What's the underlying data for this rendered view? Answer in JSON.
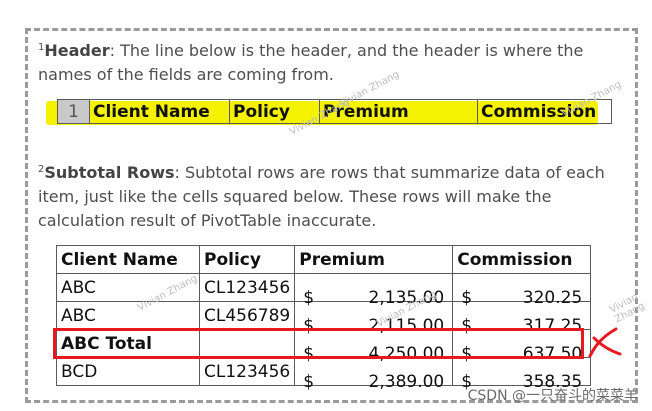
{
  "para1": {
    "sup": "1",
    "bold": "Header",
    "text": ": The line below is the header, and the header is where the names of the fields are coming from."
  },
  "header_row": {
    "row_number": "1",
    "cells": [
      "Client Name",
      "Policy",
      "Premium",
      "Commission"
    ],
    "highlight_color": "#f5f200"
  },
  "para2": {
    "sup": "2",
    "bold": "Subtotal Rows",
    "text": ": Subtotal rows are rows that summarize data of each item, just like the cells squared below. These rows will make the calculation result of PivotTable inaccurate."
  },
  "table": {
    "headers": [
      "Client Name",
      "Policy",
      "Premium",
      "Commission"
    ],
    "rows": [
      {
        "client": "ABC",
        "policy": "CL123456",
        "prem_cur": "$",
        "premium": "2,135.00",
        "comm_cur": "$",
        "commission": "320.25"
      },
      {
        "client": "ABC",
        "policy": "CL456789",
        "prem_cur": "$",
        "premium": "2,115.00",
        "comm_cur": "$",
        "commission": "317.25"
      },
      {
        "client": "ABC Total",
        "policy": "",
        "prem_cur": "$",
        "premium": "4,250.00",
        "comm_cur": "$",
        "commission": "637.50"
      },
      {
        "client": "BCD",
        "policy": "CL123456",
        "prem_cur": "$",
        "premium": "2,389.00",
        "comm_cur": "$",
        "commission": "358.35"
      }
    ]
  },
  "colors": {
    "redbox": "#e8181f",
    "frame": "#9a9a9a"
  },
  "watermark": "Vivian Zhang",
  "footer": "CSDN @一只奋斗的菜菜羊"
}
